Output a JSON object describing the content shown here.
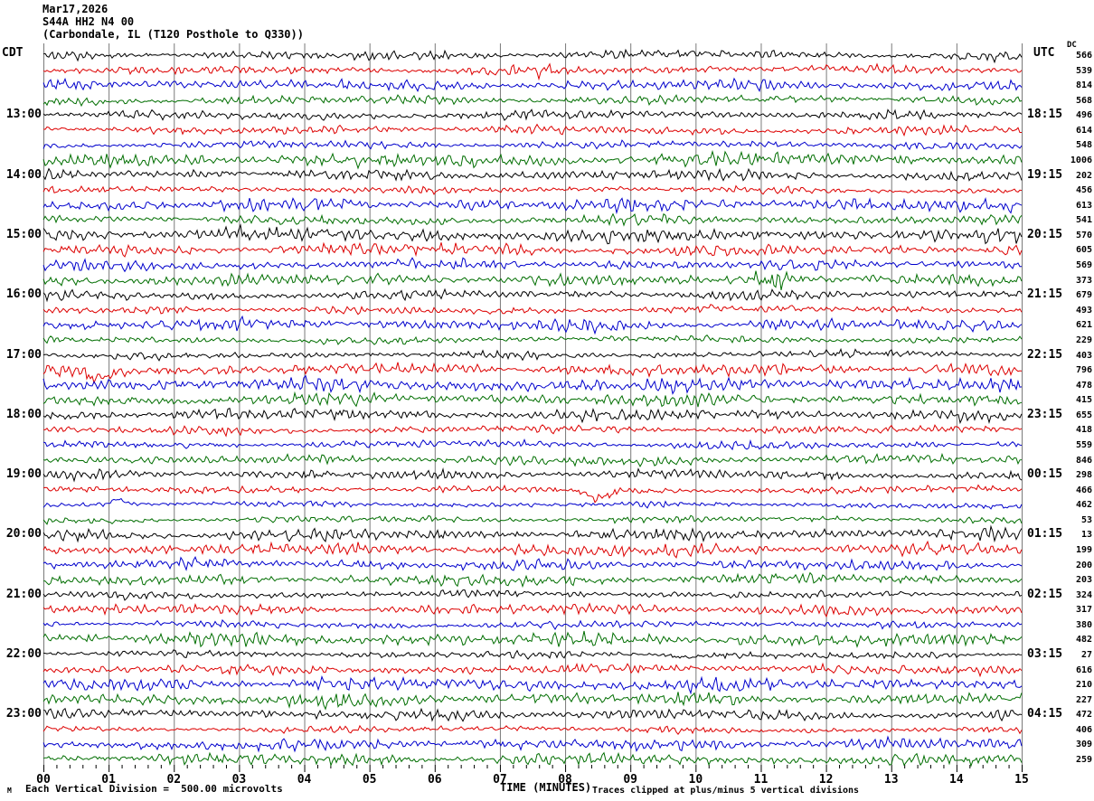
{
  "title": {
    "line1": "Mar17,2026",
    "line2": "S44A HH2 N4 00",
    "line3": "(Carbondale, IL (T120 Posthole to Q330))"
  },
  "axes": {
    "left_label": "CDT",
    "right_label": "UTC",
    "dc_header": "DC",
    "left_hours": [
      "13:00",
      "14:00",
      "15:00",
      "16:00",
      "17:00",
      "18:00",
      "19:00",
      "20:00",
      "21:00",
      "22:00",
      "23:00"
    ],
    "right_hours": [
      "18:15",
      "19:15",
      "20:15",
      "21:15",
      "22:15",
      "23:15",
      "00:15",
      "01:15",
      "02:15",
      "03:15",
      "04:15"
    ],
    "minutes": [
      "00",
      "01",
      "02",
      "03",
      "04",
      "05",
      "06",
      "07",
      "08",
      "09",
      "10",
      "11",
      "12",
      "13",
      "14",
      "15"
    ],
    "x_title": "TIME (MINUTES)"
  },
  "footer": {
    "left_note": "Each Vertical Division =  500.00 microvolts",
    "right_note": "Traces clipped at plus/minus 5 vertical divisions",
    "watermark": "M"
  },
  "colors": {
    "trace_cycle": [
      "#000000",
      "#dd0000",
      "#0000cc",
      "#006e00"
    ],
    "grid": "#7a7a7a",
    "tick": "#000000"
  },
  "chart_data": {
    "type": "line",
    "title": "Helicorder seismogram, S44A HH2 N4 00, Carbondale IL, Mar17,2026",
    "xlabel": "TIME (MINUTES)",
    "x_range_minutes": [
      0,
      15
    ],
    "row_count": 48,
    "minutes_per_row": 15,
    "rows_per_hour": 4,
    "color_cycle": [
      "black",
      "red",
      "blue",
      "green"
    ],
    "vertical_division_microvolts": 500.0,
    "clip_divisions": 5,
    "grid": "vertical minute lines on",
    "dc_values": [
      566,
      539,
      814,
      568,
      496,
      614,
      548,
      1006,
      202,
      456,
      613,
      541,
      570,
      605,
      569,
      373,
      679,
      493,
      621,
      229,
      403,
      796,
      478,
      415,
      655,
      418,
      559,
      846,
      298,
      466,
      462,
      53,
      13,
      199,
      200,
      203,
      324,
      317,
      380,
      482,
      27,
      616,
      210,
      227,
      472,
      406,
      309,
      259
    ],
    "events": [
      {
        "row": 1,
        "type": "burst",
        "center": 7.6,
        "width": 0.5,
        "amp": 1.5
      },
      {
        "row": 15,
        "type": "burst",
        "center": 11.15,
        "width": 0.25,
        "amp": 3.2
      },
      {
        "row": 15,
        "type": "dip",
        "center": 11.12,
        "width": 0.18,
        "amp": 4
      },
      {
        "row": 21,
        "type": "dip",
        "center": 0.85,
        "width": 0.25,
        "amp": 7
      },
      {
        "row": 29,
        "type": "dip",
        "center": 8.5,
        "width": 0.22,
        "amp": 9
      },
      {
        "row": 30,
        "type": "bump",
        "center": 1.15,
        "width": 0.12,
        "amp": 6
      },
      {
        "row": 35,
        "type": "burst",
        "center": 7.5,
        "width": 6.0,
        "amp": 1.25
      },
      {
        "row": 36,
        "type": "burst",
        "center": 8.2,
        "width": 0.15,
        "amp": 2.2
      },
      {
        "row": 40,
        "type": "dip",
        "center": 9.85,
        "width": 0.3,
        "amp": 3
      }
    ],
    "seed": 1234567
  }
}
